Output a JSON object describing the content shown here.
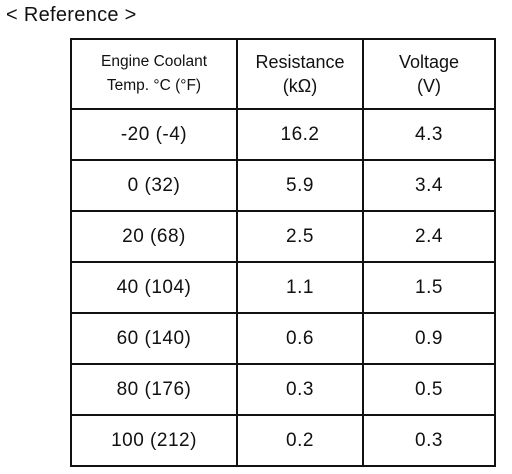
{
  "heading": "< Reference >",
  "table": {
    "headers": [
      {
        "line1": "Engine Coolant",
        "line2": "Temp. °C (°F)"
      },
      {
        "line1": "Resistance",
        "line2": "(kΩ)"
      },
      {
        "line1": "Voltage",
        "line2": "(V)"
      }
    ],
    "rows": [
      {
        "temp": "-20 (-4)",
        "resistance": "16.2",
        "voltage": "4.3"
      },
      {
        "temp": "0 (32)",
        "resistance": "5.9",
        "voltage": "3.4"
      },
      {
        "temp": "20 (68)",
        "resistance": "2.5",
        "voltage": "2.4"
      },
      {
        "temp": "40 (104)",
        "resistance": "1.1",
        "voltage": "1.5"
      },
      {
        "temp": "60 (140)",
        "resistance": "0.6",
        "voltage": "0.9"
      },
      {
        "temp": "80 (176)",
        "resistance": "0.3",
        "voltage": "0.5"
      },
      {
        "temp": "100 (212)",
        "resistance": "0.2",
        "voltage": "0.3"
      }
    ]
  }
}
